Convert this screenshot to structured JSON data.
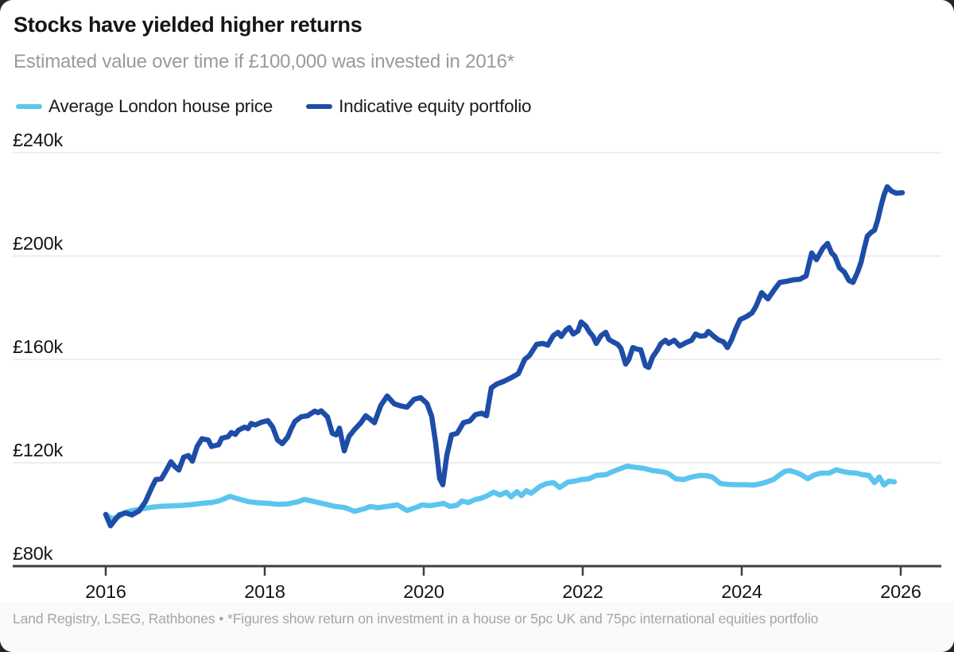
{
  "header": {
    "title": "Stocks have yielded higher returns",
    "subtitle": "Estimated value over time if £100,000 was invested in 2016*"
  },
  "legend": [
    {
      "label": "Average London house price",
      "color": "#5cc5ef"
    },
    {
      "label": "Indicative equity portfolio",
      "color": "#1e4da8"
    }
  ],
  "footer": {
    "text": "Land Registry, LSEG, Rathbones • *Figures show return on investment in a house or 5pc UK and 75pc international equities portfolio"
  },
  "colors": {
    "house": "#5cc5ef",
    "equity": "#1e4da8",
    "grid": "#e4e4e4",
    "axis": "#3f3f3f",
    "tick_text": "#141414",
    "title_text": "#161616",
    "subtitle_text": "#9a9a9a",
    "footer_text": "#a5a5a5",
    "footer_bg": "#fafafa"
  },
  "chart_data": {
    "type": "line",
    "title": "Stocks have yielded higher returns",
    "subtitle": "Estimated value over time if £100,000 was invested in 2016*",
    "unit": "GBP thousands",
    "xlabel": "",
    "ylabel": "",
    "xlim": [
      2015.85,
      2026.45
    ],
    "ylim": [
      80,
      240
    ],
    "grid": "horizontal",
    "legend_position": "top-left",
    "x_ticks": [
      {
        "value": 2016,
        "label": "2016"
      },
      {
        "value": 2018,
        "label": "2018"
      },
      {
        "value": 2020,
        "label": "2020"
      },
      {
        "value": 2022,
        "label": "2022"
      },
      {
        "value": 2024,
        "label": "2024"
      },
      {
        "value": 2026,
        "label": "2026"
      }
    ],
    "y_ticks": [
      {
        "value": 240,
        "label": "£240k",
        "gridline": true
      },
      {
        "value": 200,
        "label": "£200k",
        "gridline": true
      },
      {
        "value": 160,
        "label": "£160k",
        "gridline": true
      },
      {
        "value": 120,
        "label": "£120k",
        "gridline": true
      },
      {
        "value": 80,
        "label": "£80k",
        "gridline": false
      }
    ],
    "series": [
      {
        "name": "Average London house price",
        "color": "#5cc5ef",
        "points": [
          [
            2016.0,
            100
          ],
          [
            2016.08,
            98.3
          ],
          [
            2016.17,
            99.3
          ],
          [
            2016.25,
            100.8
          ],
          [
            2016.33,
            101.5
          ],
          [
            2016.46,
            102.2
          ],
          [
            2016.58,
            102.8
          ],
          [
            2016.71,
            103.2
          ],
          [
            2016.83,
            103.3
          ],
          [
            2016.96,
            103.5
          ],
          [
            2017.08,
            103.8
          ],
          [
            2017.21,
            104.3
          ],
          [
            2017.33,
            104.6
          ],
          [
            2017.42,
            105.2
          ],
          [
            2017.5,
            106.2
          ],
          [
            2017.56,
            107.0
          ],
          [
            2017.67,
            106.0
          ],
          [
            2017.79,
            105.0
          ],
          [
            2017.92,
            104.5
          ],
          [
            2018.04,
            104.3
          ],
          [
            2018.17,
            103.9
          ],
          [
            2018.29,
            104.1
          ],
          [
            2018.42,
            104.9
          ],
          [
            2018.5,
            105.8
          ],
          [
            2018.63,
            104.9
          ],
          [
            2018.75,
            104.1
          ],
          [
            2018.88,
            103.1
          ],
          [
            2019.0,
            102.7
          ],
          [
            2019.08,
            101.8
          ],
          [
            2019.13,
            101.2
          ],
          [
            2019.25,
            102.2
          ],
          [
            2019.33,
            103.1
          ],
          [
            2019.42,
            102.6
          ],
          [
            2019.54,
            103.1
          ],
          [
            2019.67,
            103.7
          ],
          [
            2019.79,
            101.5
          ],
          [
            2019.92,
            102.9
          ],
          [
            2019.98,
            103.7
          ],
          [
            2020.08,
            103.4
          ],
          [
            2020.17,
            103.8
          ],
          [
            2020.25,
            104.3
          ],
          [
            2020.33,
            103.1
          ],
          [
            2020.42,
            103.6
          ],
          [
            2020.48,
            105.2
          ],
          [
            2020.56,
            104.6
          ],
          [
            2020.65,
            105.8
          ],
          [
            2020.71,
            106.2
          ],
          [
            2020.79,
            107.1
          ],
          [
            2020.88,
            108.6
          ],
          [
            2020.96,
            107.5
          ],
          [
            2021.04,
            108.6
          ],
          [
            2021.1,
            106.8
          ],
          [
            2021.17,
            108.8
          ],
          [
            2021.23,
            107.3
          ],
          [
            2021.29,
            109.2
          ],
          [
            2021.35,
            108.2
          ],
          [
            2021.46,
            110.8
          ],
          [
            2021.54,
            111.9
          ],
          [
            2021.63,
            112.3
          ],
          [
            2021.71,
            110.4
          ],
          [
            2021.81,
            112.5
          ],
          [
            2021.9,
            112.9
          ],
          [
            2021.98,
            113.5
          ],
          [
            2022.08,
            113.8
          ],
          [
            2022.17,
            115.1
          ],
          [
            2022.29,
            115.4
          ],
          [
            2022.38,
            116.6
          ],
          [
            2022.48,
            117.8
          ],
          [
            2022.56,
            118.7
          ],
          [
            2022.67,
            118.2
          ],
          [
            2022.77,
            117.8
          ],
          [
            2022.88,
            117.0
          ],
          [
            2022.98,
            116.6
          ],
          [
            2023.07,
            116.0
          ],
          [
            2023.17,
            113.8
          ],
          [
            2023.27,
            113.5
          ],
          [
            2023.37,
            114.5
          ],
          [
            2023.47,
            115.1
          ],
          [
            2023.56,
            115.0
          ],
          [
            2023.63,
            114.5
          ],
          [
            2023.73,
            112.0
          ],
          [
            2023.83,
            111.6
          ],
          [
            2023.94,
            111.5
          ],
          [
            2024.04,
            111.5
          ],
          [
            2024.15,
            111.4
          ],
          [
            2024.23,
            111.8
          ],
          [
            2024.29,
            112.3
          ],
          [
            2024.4,
            113.5
          ],
          [
            2024.48,
            115.4
          ],
          [
            2024.54,
            116.6
          ],
          [
            2024.6,
            117.0
          ],
          [
            2024.69,
            116.2
          ],
          [
            2024.75,
            115.4
          ],
          [
            2024.83,
            113.8
          ],
          [
            2024.92,
            115.4
          ],
          [
            2025.0,
            116.0
          ],
          [
            2025.1,
            116.0
          ],
          [
            2025.19,
            117.3
          ],
          [
            2025.27,
            116.6
          ],
          [
            2025.35,
            116.2
          ],
          [
            2025.44,
            116.0
          ],
          [
            2025.52,
            115.4
          ],
          [
            2025.6,
            115.1
          ],
          [
            2025.67,
            112.3
          ],
          [
            2025.73,
            114.5
          ],
          [
            2025.79,
            111.4
          ],
          [
            2025.85,
            112.9
          ],
          [
            2025.92,
            112.6
          ]
        ]
      },
      {
        "name": "Indicative equity portfolio",
        "color": "#1e4da8",
        "points": [
          [
            2016.0,
            100
          ],
          [
            2016.06,
            95.6
          ],
          [
            2016.12,
            98.0
          ],
          [
            2016.17,
            99.8
          ],
          [
            2016.25,
            100.6
          ],
          [
            2016.33,
            99.8
          ],
          [
            2016.42,
            101.4
          ],
          [
            2016.5,
            105.0
          ],
          [
            2016.58,
            110.5
          ],
          [
            2016.63,
            113.5
          ],
          [
            2016.7,
            113.8
          ],
          [
            2016.77,
            117.5
          ],
          [
            2016.82,
            120.4
          ],
          [
            2016.87,
            118.5
          ],
          [
            2016.92,
            117.2
          ],
          [
            2016.98,
            122.2
          ],
          [
            2017.04,
            122.8
          ],
          [
            2017.09,
            120.6
          ],
          [
            2017.15,
            126.3
          ],
          [
            2017.21,
            129.3
          ],
          [
            2017.29,
            128.8
          ],
          [
            2017.33,
            126.3
          ],
          [
            2017.42,
            127.0
          ],
          [
            2017.46,
            129.5
          ],
          [
            2017.54,
            130.1
          ],
          [
            2017.58,
            131.7
          ],
          [
            2017.63,
            131.0
          ],
          [
            2017.67,
            132.6
          ],
          [
            2017.75,
            133.8
          ],
          [
            2017.79,
            133.2
          ],
          [
            2017.83,
            135.2
          ],
          [
            2017.88,
            134.6
          ],
          [
            2017.96,
            135.7
          ],
          [
            2018.04,
            136.3
          ],
          [
            2018.1,
            133.8
          ],
          [
            2018.16,
            128.9
          ],
          [
            2018.22,
            127.4
          ],
          [
            2018.29,
            130.0
          ],
          [
            2018.33,
            133.0
          ],
          [
            2018.38,
            136.0
          ],
          [
            2018.46,
            137.8
          ],
          [
            2018.54,
            138.2
          ],
          [
            2018.63,
            140.0
          ],
          [
            2018.67,
            139.4
          ],
          [
            2018.71,
            140.1
          ],
          [
            2018.79,
            137.7
          ],
          [
            2018.85,
            131.4
          ],
          [
            2018.9,
            130.8
          ],
          [
            2018.94,
            133.4
          ],
          [
            2019.0,
            124.6
          ],
          [
            2019.06,
            130.2
          ],
          [
            2019.13,
            132.9
          ],
          [
            2019.21,
            135.5
          ],
          [
            2019.27,
            138.2
          ],
          [
            2019.33,
            136.8
          ],
          [
            2019.38,
            135.5
          ],
          [
            2019.46,
            142.2
          ],
          [
            2019.54,
            145.8
          ],
          [
            2019.63,
            142.8
          ],
          [
            2019.71,
            142.0
          ],
          [
            2019.79,
            141.5
          ],
          [
            2019.88,
            144.6
          ],
          [
            2019.96,
            145.2
          ],
          [
            2020.04,
            143.0
          ],
          [
            2020.1,
            138.0
          ],
          [
            2020.15,
            127.7
          ],
          [
            2020.2,
            113.9
          ],
          [
            2020.24,
            111.5
          ],
          [
            2020.29,
            122.8
          ],
          [
            2020.35,
            130.8
          ],
          [
            2020.42,
            131.4
          ],
          [
            2020.5,
            135.5
          ],
          [
            2020.58,
            136.2
          ],
          [
            2020.65,
            138.6
          ],
          [
            2020.73,
            139.2
          ],
          [
            2020.79,
            138.2
          ],
          [
            2020.85,
            149.0
          ],
          [
            2020.92,
            150.5
          ],
          [
            2021.0,
            151.4
          ],
          [
            2021.1,
            152.9
          ],
          [
            2021.19,
            154.5
          ],
          [
            2021.27,
            160.0
          ],
          [
            2021.33,
            161.5
          ],
          [
            2021.42,
            165.8
          ],
          [
            2021.5,
            166.2
          ],
          [
            2021.56,
            165.5
          ],
          [
            2021.63,
            169.2
          ],
          [
            2021.69,
            170.5
          ],
          [
            2021.73,
            168.9
          ],
          [
            2021.79,
            171.4
          ],
          [
            2021.83,
            172.3
          ],
          [
            2021.88,
            169.8
          ],
          [
            2021.94,
            171.0
          ],
          [
            2021.98,
            174.5
          ],
          [
            2022.04,
            172.9
          ],
          [
            2022.08,
            170.8
          ],
          [
            2022.13,
            168.9
          ],
          [
            2022.17,
            166.2
          ],
          [
            2022.23,
            169.2
          ],
          [
            2022.29,
            170.5
          ],
          [
            2022.33,
            167.7
          ],
          [
            2022.38,
            166.8
          ],
          [
            2022.44,
            165.8
          ],
          [
            2022.48,
            164.3
          ],
          [
            2022.54,
            158.2
          ],
          [
            2022.58,
            160.0
          ],
          [
            2022.63,
            164.6
          ],
          [
            2022.69,
            163.9
          ],
          [
            2022.73,
            163.7
          ],
          [
            2022.79,
            157.5
          ],
          [
            2022.83,
            156.9
          ],
          [
            2022.88,
            161.0
          ],
          [
            2022.94,
            163.7
          ],
          [
            2022.98,
            166.0
          ],
          [
            2023.04,
            167.4
          ],
          [
            2023.08,
            166.2
          ],
          [
            2023.15,
            167.4
          ],
          [
            2023.22,
            165.2
          ],
          [
            2023.3,
            166.5
          ],
          [
            2023.37,
            167.4
          ],
          [
            2023.42,
            169.8
          ],
          [
            2023.48,
            169.0
          ],
          [
            2023.54,
            169.2
          ],
          [
            2023.58,
            170.8
          ],
          [
            2023.65,
            168.9
          ],
          [
            2023.71,
            167.5
          ],
          [
            2023.77,
            166.8
          ],
          [
            2023.82,
            164.6
          ],
          [
            2023.87,
            167.4
          ],
          [
            2023.92,
            171.4
          ],
          [
            2023.98,
            175.4
          ],
          [
            2024.06,
            176.6
          ],
          [
            2024.13,
            178.0
          ],
          [
            2024.18,
            180.6
          ],
          [
            2024.25,
            185.8
          ],
          [
            2024.33,
            183.4
          ],
          [
            2024.42,
            187.4
          ],
          [
            2024.48,
            189.8
          ],
          [
            2024.56,
            190.2
          ],
          [
            2024.65,
            190.8
          ],
          [
            2024.73,
            191.0
          ],
          [
            2024.81,
            192.3
          ],
          [
            2024.88,
            201.2
          ],
          [
            2024.94,
            198.6
          ],
          [
            2025.02,
            203.0
          ],
          [
            2025.08,
            204.9
          ],
          [
            2025.13,
            201.2
          ],
          [
            2025.17,
            200.0
          ],
          [
            2025.23,
            195.4
          ],
          [
            2025.29,
            193.8
          ],
          [
            2025.35,
            190.5
          ],
          [
            2025.4,
            189.8
          ],
          [
            2025.46,
            194.0
          ],
          [
            2025.5,
            197.5
          ],
          [
            2025.54,
            202.8
          ],
          [
            2025.58,
            207.7
          ],
          [
            2025.63,
            209.2
          ],
          [
            2025.67,
            210.0
          ],
          [
            2025.71,
            213.9
          ],
          [
            2025.75,
            219.1
          ],
          [
            2025.79,
            223.7
          ],
          [
            2025.83,
            226.8
          ],
          [
            2025.88,
            225.2
          ],
          [
            2025.94,
            224.3
          ],
          [
            2026.02,
            224.5
          ]
        ]
      }
    ]
  }
}
